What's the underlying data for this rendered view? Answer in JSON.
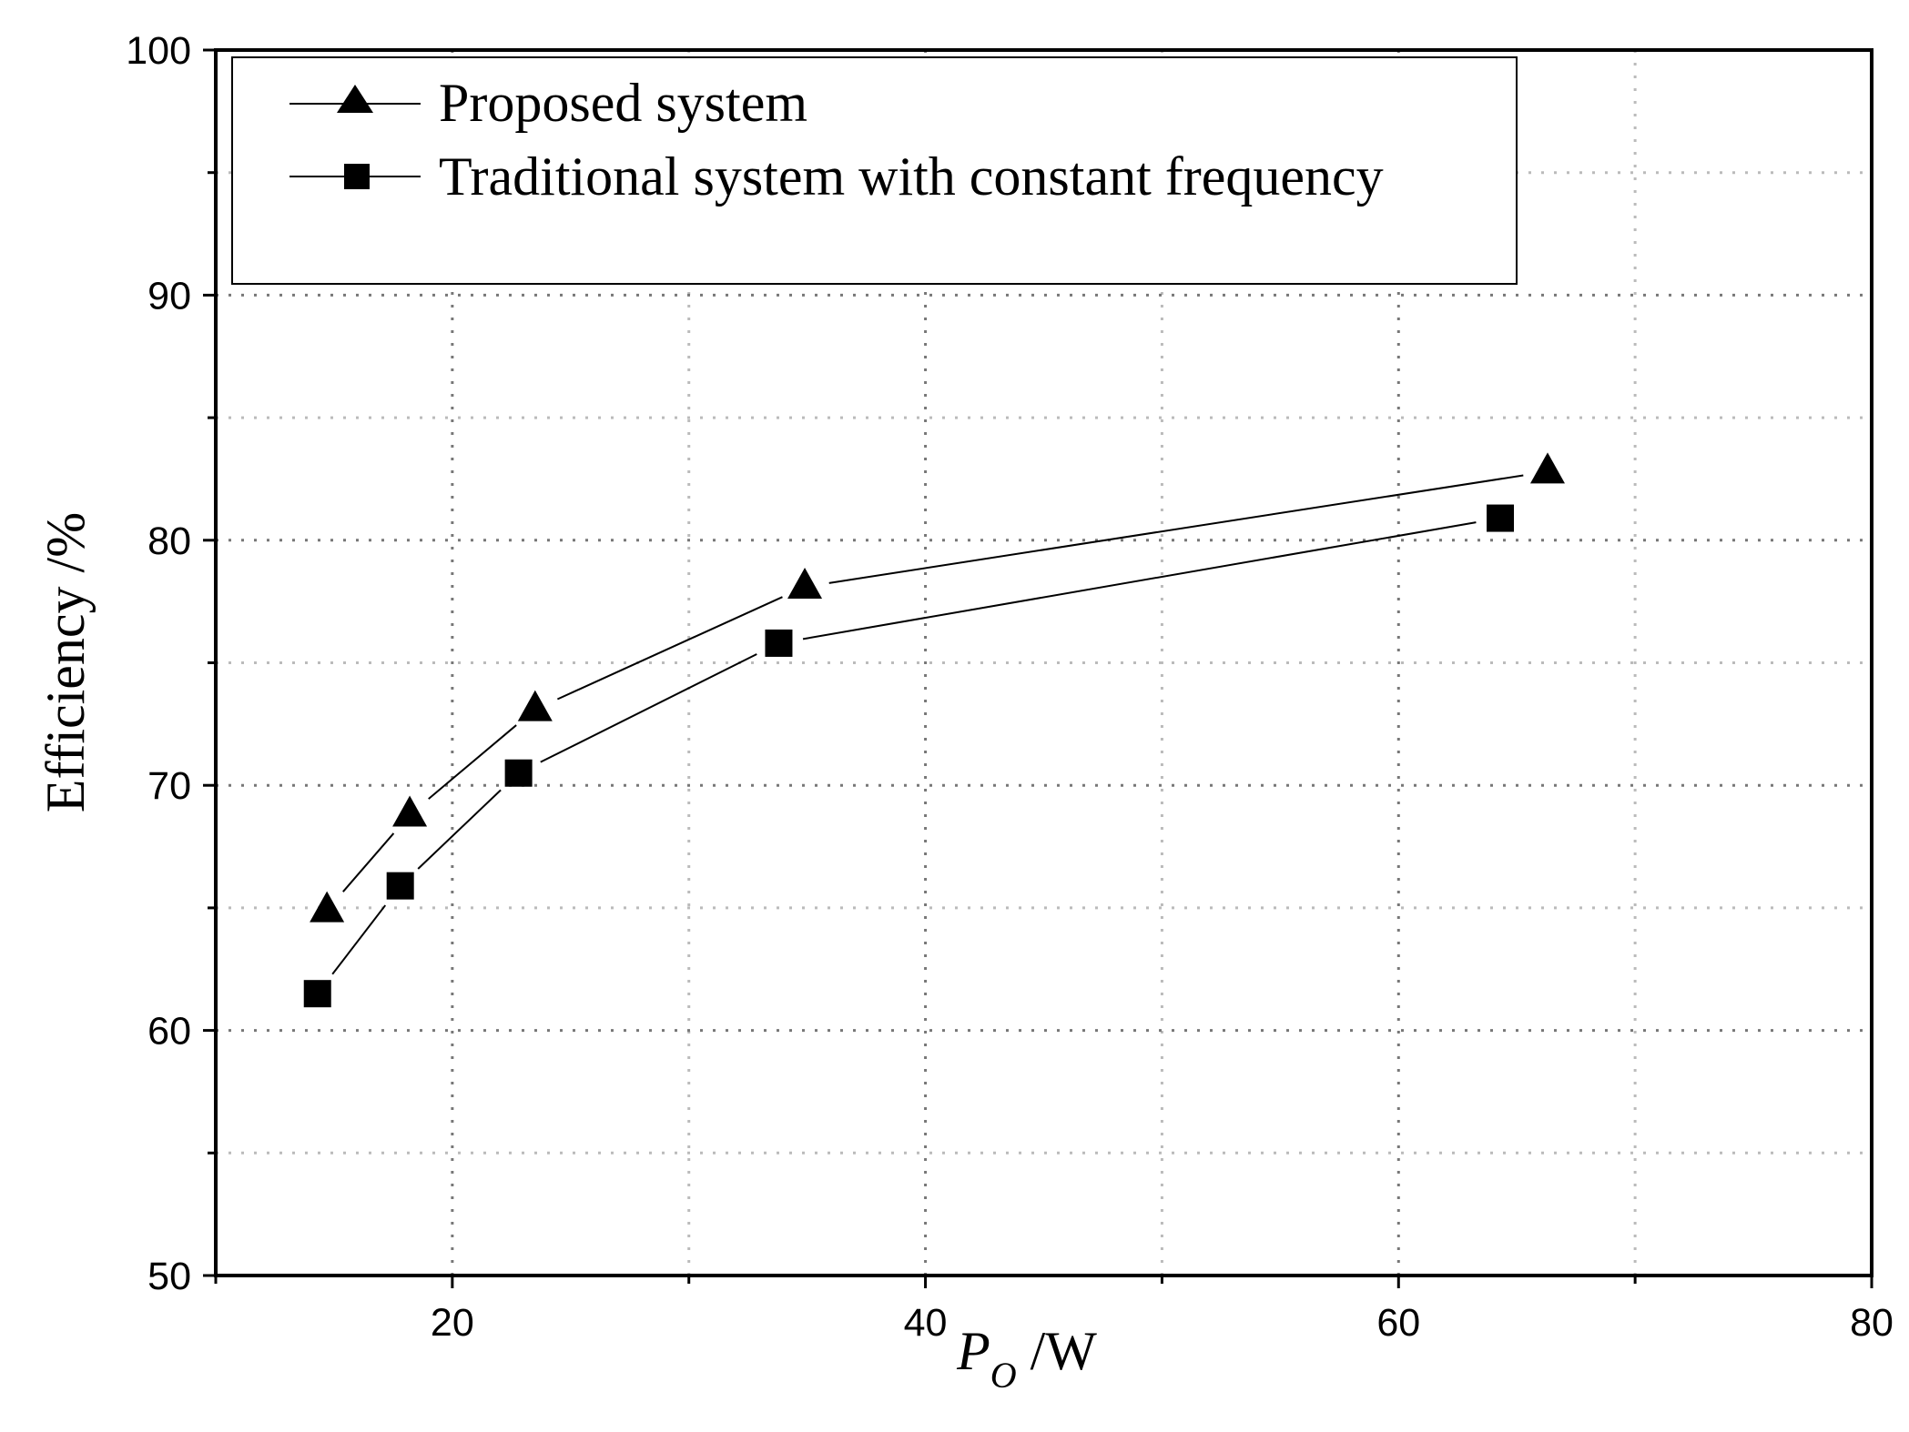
{
  "chart_data": {
    "type": "line",
    "xlabel_main": "P",
    "xlabel_sub": "O",
    "xlabel_unit": " /W",
    "ylabel": "Efficiency /%",
    "xlim": [
      10,
      80
    ],
    "ylim": [
      50,
      100
    ],
    "x_ticks": [
      20,
      40,
      60,
      80
    ],
    "x_minor_ticks": [
      10,
      30,
      50,
      70
    ],
    "y_ticks": [
      50,
      60,
      70,
      80,
      90,
      100
    ],
    "y_minor_ticks": [
      55,
      65,
      75,
      85,
      95
    ],
    "grid": true,
    "legend_position": "top-left",
    "series": [
      {
        "name": "Proposed system",
        "marker": "triangle",
        "color": "#000000",
        "x": [
          14.7,
          18.2,
          23.5,
          34.9,
          66.3
        ],
        "y": [
          64.9,
          68.8,
          73.1,
          78.1,
          82.8
        ]
      },
      {
        "name": "Traditional system with constant frequency",
        "marker": "square",
        "color": "#000000",
        "x": [
          14.3,
          17.8,
          22.8,
          33.8,
          64.3
        ],
        "y": [
          61.5,
          65.9,
          70.5,
          75.8,
          80.9
        ]
      }
    ]
  }
}
